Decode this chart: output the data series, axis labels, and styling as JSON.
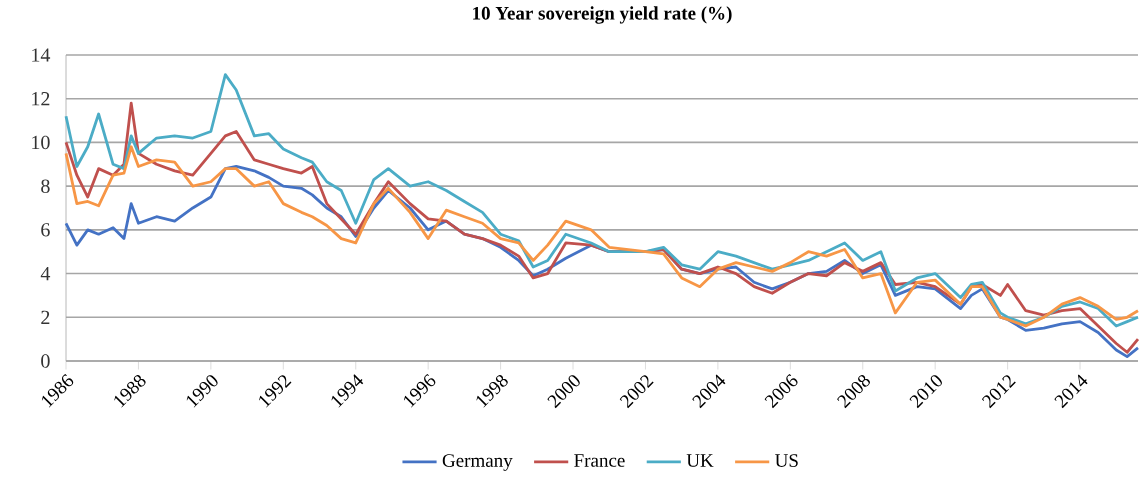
{
  "chart_data": {
    "type": "line",
    "title": "10 Year sovereign yield rate (%)",
    "x": [
      1986,
      1986.3,
      1986.6,
      1986.9,
      1987.3,
      1987.6,
      1987.8,
      1988,
      1988.5,
      1989,
      1989.5,
      1990,
      1990.4,
      1990.7,
      1991.2,
      1991.6,
      1992,
      1992.5,
      1992.8,
      1993.2,
      1993.6,
      1994,
      1994.5,
      1994.9,
      1995.5,
      1996,
      1996.5,
      1997,
      1997.5,
      1998,
      1998.5,
      1998.9,
      1999.3,
      1999.8,
      2000.5,
      2001,
      2002,
      2002.5,
      2003,
      2003.5,
      2004,
      2004.5,
      2005,
      2005.5,
      2006,
      2006.5,
      2007,
      2007.5,
      2008,
      2008.5,
      2008.9,
      2009.5,
      2010,
      2010.7,
      2011,
      2011.3,
      2011.8,
      2012,
      2012.5,
      2013,
      2013.5,
      2014,
      2014.5,
      2015,
      2015.3,
      2015.6
    ],
    "series": [
      {
        "name": "Germany",
        "color": "#4472c4",
        "values": [
          6.3,
          5.3,
          6.0,
          5.8,
          6.1,
          5.6,
          7.2,
          6.3,
          6.6,
          6.4,
          7.0,
          7.5,
          8.8,
          8.9,
          8.7,
          8.4,
          8.0,
          7.9,
          7.6,
          7.0,
          6.6,
          5.7,
          7.0,
          7.8,
          7.0,
          6.0,
          6.4,
          5.8,
          5.6,
          5.2,
          4.6,
          3.9,
          4.2,
          4.7,
          5.3,
          5.0,
          5.0,
          5.1,
          4.2,
          4.0,
          4.2,
          4.3,
          3.6,
          3.3,
          3.6,
          4.0,
          4.1,
          4.6,
          4.0,
          4.4,
          3.0,
          3.4,
          3.3,
          2.4,
          3.0,
          3.3,
          2.0,
          1.9,
          1.4,
          1.5,
          1.7,
          1.8,
          1.3,
          0.5,
          0.2,
          0.6
        ]
      },
      {
        "name": "France",
        "color": "#c0504d",
        "values": [
          10.0,
          8.5,
          7.5,
          8.8,
          8.5,
          9.0,
          11.8,
          9.5,
          9.0,
          8.7,
          8.5,
          9.5,
          10.3,
          10.5,
          9.2,
          9.0,
          8.8,
          8.6,
          8.9,
          7.2,
          6.5,
          5.8,
          7.2,
          8.2,
          7.2,
          6.5,
          6.4,
          5.8,
          5.6,
          5.3,
          4.8,
          3.8,
          4.0,
          5.4,
          5.3,
          5.0,
          5.0,
          5.1,
          4.2,
          4.0,
          4.3,
          4.0,
          3.4,
          3.1,
          3.6,
          4.0,
          3.9,
          4.5,
          4.1,
          4.5,
          3.5,
          3.6,
          3.4,
          2.6,
          3.4,
          3.5,
          3.0,
          3.5,
          2.3,
          2.1,
          2.3,
          2.4,
          1.6,
          0.8,
          0.4,
          1.0
        ]
      },
      {
        "name": "UK",
        "color": "#4bacc6",
        "values": [
          11.2,
          8.9,
          9.8,
          11.3,
          9.0,
          8.8,
          10.3,
          9.5,
          10.2,
          10.3,
          10.2,
          10.5,
          13.1,
          12.4,
          10.3,
          10.4,
          9.7,
          9.3,
          9.1,
          8.2,
          7.8,
          6.3,
          8.3,
          8.8,
          8.0,
          8.2,
          7.8,
          7.3,
          6.8,
          5.8,
          5.5,
          4.3,
          4.6,
          5.8,
          5.4,
          5.0,
          5.0,
          5.2,
          4.4,
          4.2,
          5.0,
          4.8,
          4.5,
          4.2,
          4.4,
          4.6,
          5.0,
          5.4,
          4.6,
          5.0,
          3.2,
          3.8,
          4.0,
          2.9,
          3.5,
          3.6,
          2.2,
          2.0,
          1.7,
          2.0,
          2.5,
          2.7,
          2.4,
          1.6,
          1.8,
          2.0
        ]
      },
      {
        "name": "US",
        "color": "#f79646",
        "values": [
          9.5,
          7.2,
          7.3,
          7.1,
          8.5,
          8.6,
          9.8,
          8.9,
          9.2,
          9.1,
          8.0,
          8.2,
          8.8,
          8.8,
          8.0,
          8.2,
          7.2,
          6.8,
          6.6,
          6.2,
          5.6,
          5.4,
          7.2,
          7.9,
          6.8,
          5.6,
          6.9,
          6.6,
          6.3,
          5.6,
          5.4,
          4.6,
          5.3,
          6.4,
          6.0,
          5.2,
          5.0,
          4.9,
          3.8,
          3.4,
          4.2,
          4.5,
          4.3,
          4.1,
          4.5,
          5.0,
          4.8,
          5.1,
          3.8,
          4.0,
          2.2,
          3.6,
          3.7,
          2.6,
          3.4,
          3.4,
          2.0,
          1.9,
          1.6,
          2.0,
          2.6,
          2.9,
          2.5,
          1.9,
          2.0,
          2.3
        ]
      }
    ],
    "xlim": [
      1986,
      2015.6
    ],
    "xticks": [
      1986,
      1988,
      1990,
      1992,
      1994,
      1996,
      1998,
      2000,
      2002,
      2004,
      2006,
      2008,
      2010,
      2012,
      2014
    ],
    "ylim": [
      0,
      14
    ],
    "yticks": [
      0,
      2,
      4,
      6,
      8,
      10,
      12,
      14
    ],
    "grid": "y",
    "legend": "bottom",
    "marker": "none",
    "line_style": "solid"
  }
}
